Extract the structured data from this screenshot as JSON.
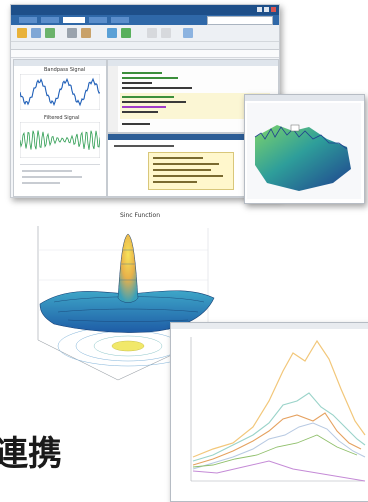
{
  "main_window": {
    "plot_titles": [
      "Bandpass Signal",
      "Filtered Signal"
    ],
    "colors": {
      "titlebar": "#1e4f89",
      "tabbar": "#2f68a8",
      "plot_line": "#1f5fb8",
      "plot_line_green": "#2c9c50"
    }
  },
  "surface_figure": {
    "title": "Sinc Function",
    "colormap": "parula"
  },
  "spectrum_figure": {
    "colormap": "green-blue"
  },
  "line_figure": {
    "series_colors": [
      "#f2c77a",
      "#9ad3c9",
      "#e5a15f",
      "#b7c9e2",
      "#c48ad6",
      "#8fbf6a"
    ]
  },
  "caption": {
    "text": "連携"
  }
}
